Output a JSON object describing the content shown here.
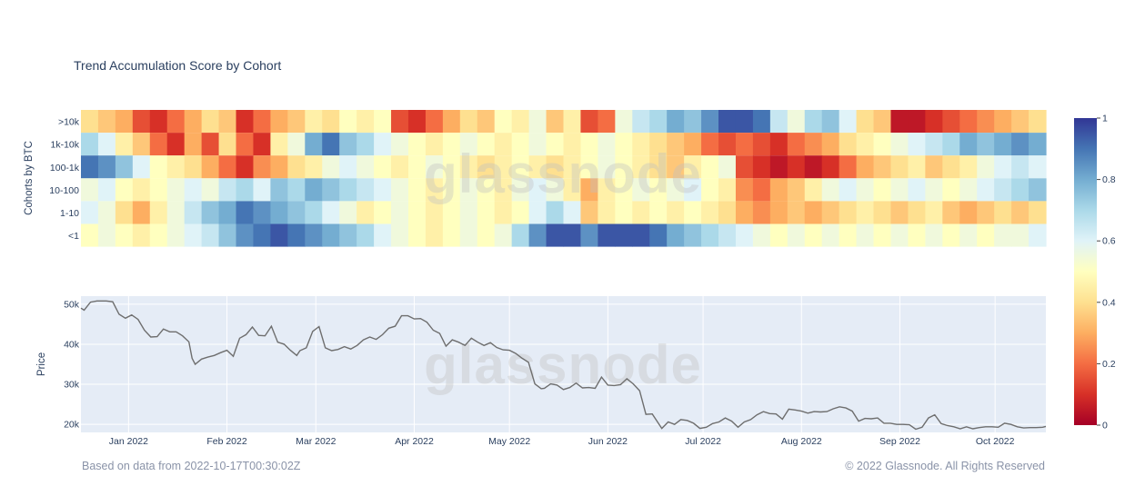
{
  "chart_data": [
    {
      "type": "heatmap",
      "title": "Trend Accumulation Score by Cohort",
      "ylabel": "Cohorts by BTC",
      "rows": [
        ">10k",
        "1k-10k",
        "100-1k",
        "10-100",
        "1-10",
        "<1"
      ],
      "x_start": "2021-12-17",
      "x_end": "2022-10-17",
      "values_by_row": [
        [
          0.4,
          0.35,
          0.3,
          0.15,
          0.1,
          0.2,
          0.3,
          0.4,
          0.35,
          0.1,
          0.2,
          0.3,
          0.35,
          0.45,
          0.4,
          0.5,
          0.45,
          0.5,
          0.15,
          0.1,
          0.2,
          0.3,
          0.4,
          0.35,
          0.5,
          0.45,
          0.55,
          0.35,
          0.45,
          0.15,
          0.2,
          0.55,
          0.65,
          0.7,
          0.8,
          0.75,
          0.85,
          0.95,
          0.95,
          0.9,
          0.65,
          0.55,
          0.7,
          0.75,
          0.6,
          0.4,
          0.35,
          0.05,
          0.05,
          0.1,
          0.15,
          0.2,
          0.25,
          0.3,
          0.35,
          0.4
        ],
        [
          0.7,
          0.6,
          0.45,
          0.35,
          0.2,
          0.1,
          0.3,
          0.15,
          0.4,
          0.2,
          0.1,
          0.45,
          0.55,
          0.8,
          0.9,
          0.75,
          0.7,
          0.6,
          0.55,
          0.5,
          0.45,
          0.5,
          0.55,
          0.5,
          0.45,
          0.5,
          0.55,
          0.5,
          0.45,
          0.5,
          0.55,
          0.5,
          0.45,
          0.4,
          0.35,
          0.3,
          0.2,
          0.15,
          0.2,
          0.15,
          0.1,
          0.2,
          0.25,
          0.3,
          0.4,
          0.45,
          0.5,
          0.55,
          0.6,
          0.65,
          0.7,
          0.8,
          0.75,
          0.8,
          0.85,
          0.8
        ],
        [
          0.9,
          0.85,
          0.75,
          0.6,
          0.5,
          0.45,
          0.4,
          0.3,
          0.2,
          0.1,
          0.25,
          0.3,
          0.4,
          0.45,
          0.55,
          0.6,
          0.55,
          0.5,
          0.45,
          0.5,
          0.55,
          0.5,
          0.45,
          0.4,
          0.45,
          0.5,
          0.45,
          0.4,
          0.45,
          0.5,
          0.55,
          0.5,
          0.45,
          0.4,
          0.35,
          0.45,
          0.5,
          0.55,
          0.15,
          0.1,
          0.05,
          0.1,
          0.05,
          0.1,
          0.2,
          0.3,
          0.35,
          0.4,
          0.45,
          0.35,
          0.4,
          0.45,
          0.55,
          0.6,
          0.65,
          0.6
        ],
        [
          0.55,
          0.6,
          0.5,
          0.45,
          0.5,
          0.55,
          0.6,
          0.55,
          0.65,
          0.7,
          0.6,
          0.75,
          0.7,
          0.8,
          0.75,
          0.7,
          0.65,
          0.6,
          0.55,
          0.5,
          0.45,
          0.5,
          0.55,
          0.5,
          0.45,
          0.55,
          0.6,
          0.55,
          0.45,
          0.3,
          0.45,
          0.5,
          0.55,
          0.5,
          0.55,
          0.6,
          0.5,
          0.45,
          0.25,
          0.2,
          0.3,
          0.35,
          0.45,
          0.55,
          0.6,
          0.55,
          0.5,
          0.55,
          0.6,
          0.55,
          0.5,
          0.55,
          0.6,
          0.65,
          0.7,
          0.75
        ],
        [
          0.6,
          0.55,
          0.4,
          0.3,
          0.45,
          0.55,
          0.65,
          0.75,
          0.8,
          0.9,
          0.85,
          0.8,
          0.75,
          0.7,
          0.6,
          0.55,
          0.45,
          0.5,
          0.55,
          0.5,
          0.45,
          0.5,
          0.55,
          0.5,
          0.45,
          0.5,
          0.6,
          0.7,
          0.6,
          0.35,
          0.45,
          0.5,
          0.45,
          0.5,
          0.45,
          0.5,
          0.45,
          0.4,
          0.3,
          0.25,
          0.3,
          0.35,
          0.3,
          0.35,
          0.4,
          0.45,
          0.4,
          0.35,
          0.4,
          0.45,
          0.35,
          0.3,
          0.35,
          0.4,
          0.35,
          0.4
        ],
        [
          0.5,
          0.55,
          0.5,
          0.45,
          0.5,
          0.55,
          0.6,
          0.65,
          0.75,
          0.85,
          0.9,
          0.95,
          0.9,
          0.85,
          0.8,
          0.75,
          0.7,
          0.6,
          0.55,
          0.5,
          0.45,
          0.5,
          0.55,
          0.5,
          0.55,
          0.7,
          0.85,
          0.95,
          0.95,
          0.85,
          0.95,
          0.95,
          0.95,
          0.9,
          0.8,
          0.75,
          0.7,
          0.65,
          0.6,
          0.55,
          0.5,
          0.55,
          0.5,
          0.55,
          0.5,
          0.55,
          0.5,
          0.55,
          0.5,
          0.55,
          0.5,
          0.55,
          0.5,
          0.55,
          0.55,
          0.6
        ]
      ],
      "colorscale": [
        "#a50026",
        "#d73027",
        "#f46d43",
        "#fdae61",
        "#fee090",
        "#ffffbf",
        "#e0f3f8",
        "#abd9e9",
        "#74add1",
        "#4575b4",
        "#313695"
      ],
      "zlim": [
        0,
        1
      ],
      "colorbar_ticks": [
        "0",
        "0.2",
        "0.4",
        "0.6",
        "0.8",
        "1"
      ]
    },
    {
      "type": "line",
      "ylabel": "Price",
      "ylim": [
        18000,
        52000
      ],
      "yticks": [
        {
          "v": 50000,
          "label": "50k"
        },
        {
          "v": 40000,
          "label": "40k"
        },
        {
          "v": 30000,
          "label": "30k"
        },
        {
          "v": 20000,
          "label": "20k"
        }
      ],
      "x_start": "2021-12-17",
      "x_end": "2022-10-17",
      "xticks": [
        {
          "date": "2022-01-01",
          "label": "Jan 2022"
        },
        {
          "date": "2022-02-01",
          "label": "Feb 2022"
        },
        {
          "date": "2022-03-01",
          "label": "Mar 2022"
        },
        {
          "date": "2022-04-01",
          "label": "Apr 2022"
        },
        {
          "date": "2022-05-01",
          "label": "May 2022"
        },
        {
          "date": "2022-06-01",
          "label": "Jun 2022"
        },
        {
          "date": "2022-07-01",
          "label": "Jul 2022"
        },
        {
          "date": "2022-08-01",
          "label": "Aug 2022"
        },
        {
          "date": "2022-09-01",
          "label": "Sep 2022"
        },
        {
          "date": "2022-10-01",
          "label": "Oct 2022"
        }
      ],
      "series": [
        {
          "line_color": "#6e6e6e",
          "points": [
            [
              "2021-12-17",
              49000
            ],
            [
              "2021-12-18",
              48500
            ],
            [
              "2021-12-20",
              50500
            ],
            [
              "2021-12-22",
              50800
            ],
            [
              "2021-12-25",
              50800
            ],
            [
              "2021-12-27",
              50600
            ],
            [
              "2021-12-29",
              47500
            ],
            [
              "2021-12-31",
              46500
            ],
            [
              "2022-01-02",
              47300
            ],
            [
              "2022-01-04",
              46200
            ],
            [
              "2022-01-06",
              43500
            ],
            [
              "2022-01-08",
              41800
            ],
            [
              "2022-01-10",
              41900
            ],
            [
              "2022-01-12",
              43800
            ],
            [
              "2022-01-14",
              43100
            ],
            [
              "2022-01-16",
              43100
            ],
            [
              "2022-01-18",
              42100
            ],
            [
              "2022-01-20",
              40600
            ],
            [
              "2022-01-21",
              36500
            ],
            [
              "2022-01-22",
              35000
            ],
            [
              "2022-01-24",
              36300
            ],
            [
              "2022-01-26",
              36800
            ],
            [
              "2022-01-28",
              37200
            ],
            [
              "2022-01-30",
              37900
            ],
            [
              "2022-02-01",
              38500
            ],
            [
              "2022-02-03",
              37000
            ],
            [
              "2022-02-05",
              41500
            ],
            [
              "2022-02-07",
              42400
            ],
            [
              "2022-02-09",
              44300
            ],
            [
              "2022-02-11",
              42200
            ],
            [
              "2022-02-13",
              42100
            ],
            [
              "2022-02-15",
              44500
            ],
            [
              "2022-02-17",
              40500
            ],
            [
              "2022-02-19",
              40000
            ],
            [
              "2022-02-21",
              38500
            ],
            [
              "2022-02-23",
              37200
            ],
            [
              "2022-02-24",
              38400
            ],
            [
              "2022-02-26",
              39100
            ],
            [
              "2022-02-28",
              43200
            ],
            [
              "2022-03-02",
              44400
            ],
            [
              "2022-03-04",
              39100
            ],
            [
              "2022-03-06",
              38400
            ],
            [
              "2022-03-08",
              38700
            ],
            [
              "2022-03-10",
              39400
            ],
            [
              "2022-03-12",
              38800
            ],
            [
              "2022-03-14",
              39700
            ],
            [
              "2022-03-16",
              41100
            ],
            [
              "2022-03-18",
              41800
            ],
            [
              "2022-03-20",
              41200
            ],
            [
              "2022-03-22",
              42400
            ],
            [
              "2022-03-24",
              44000
            ],
            [
              "2022-03-26",
              44500
            ],
            [
              "2022-03-28",
              47100
            ],
            [
              "2022-03-30",
              47100
            ],
            [
              "2022-04-01",
              46300
            ],
            [
              "2022-04-03",
              46400
            ],
            [
              "2022-04-05",
              45500
            ],
            [
              "2022-04-07",
              43500
            ],
            [
              "2022-04-09",
              42700
            ],
            [
              "2022-04-11",
              39500
            ],
            [
              "2022-04-13",
              41100
            ],
            [
              "2022-04-15",
              40500
            ],
            [
              "2022-04-17",
              39700
            ],
            [
              "2022-04-19",
              41500
            ],
            [
              "2022-04-21",
              40500
            ],
            [
              "2022-04-23",
              39700
            ],
            [
              "2022-04-25",
              40400
            ],
            [
              "2022-04-27",
              39200
            ],
            [
              "2022-04-29",
              38600
            ],
            [
              "2022-05-01",
              38500
            ],
            [
              "2022-05-03",
              37700
            ],
            [
              "2022-05-05",
              36500
            ],
            [
              "2022-05-07",
              35500
            ],
            [
              "2022-05-09",
              30100
            ],
            [
              "2022-05-11",
              28900
            ],
            [
              "2022-05-12",
              29000
            ],
            [
              "2022-05-14",
              30100
            ],
            [
              "2022-05-16",
              29800
            ],
            [
              "2022-05-18",
              28700
            ],
            [
              "2022-05-20",
              29200
            ],
            [
              "2022-05-22",
              30300
            ],
            [
              "2022-05-24",
              29100
            ],
            [
              "2022-05-26",
              29200
            ],
            [
              "2022-05-28",
              29000
            ],
            [
              "2022-05-30",
              31800
            ],
            [
              "2022-06-01",
              29800
            ],
            [
              "2022-06-03",
              29700
            ],
            [
              "2022-06-05",
              29900
            ],
            [
              "2022-06-07",
              31400
            ],
            [
              "2022-06-09",
              30100
            ],
            [
              "2022-06-11",
              28400
            ],
            [
              "2022-06-13",
              22500
            ],
            [
              "2022-06-15",
              22600
            ],
            [
              "2022-06-18",
              19000
            ],
            [
              "2022-06-20",
              20600
            ],
            [
              "2022-06-22",
              20000
            ],
            [
              "2022-06-24",
              21200
            ],
            [
              "2022-06-26",
              21000
            ],
            [
              "2022-06-28",
              20300
            ],
            [
              "2022-06-30",
              19000
            ],
            [
              "2022-07-02",
              19300
            ],
            [
              "2022-07-04",
              20200
            ],
            [
              "2022-07-06",
              20600
            ],
            [
              "2022-07-08",
              21600
            ],
            [
              "2022-07-10",
              20800
            ],
            [
              "2022-07-12",
              19300
            ],
            [
              "2022-07-14",
              20600
            ],
            [
              "2022-07-16",
              21200
            ],
            [
              "2022-07-18",
              22400
            ],
            [
              "2022-07-20",
              23200
            ],
            [
              "2022-07-22",
              22700
            ],
            [
              "2022-07-24",
              22600
            ],
            [
              "2022-07-26",
              21300
            ],
            [
              "2022-07-28",
              23800
            ],
            [
              "2022-07-30",
              23600
            ],
            [
              "2022-08-01",
              23300
            ],
            [
              "2022-08-03",
              22800
            ],
            [
              "2022-08-05",
              23200
            ],
            [
              "2022-08-07",
              23100
            ],
            [
              "2022-08-09",
              23200
            ],
            [
              "2022-08-11",
              23900
            ],
            [
              "2022-08-13",
              24400
            ],
            [
              "2022-08-15",
              24100
            ],
            [
              "2022-08-17",
              23300
            ],
            [
              "2022-08-19",
              20800
            ],
            [
              "2022-08-21",
              21500
            ],
            [
              "2022-08-23",
              21400
            ],
            [
              "2022-08-25",
              21600
            ],
            [
              "2022-08-27",
              20300
            ],
            [
              "2022-08-29",
              20300
            ],
            [
              "2022-08-31",
              20000
            ],
            [
              "2022-09-02",
              20000
            ],
            [
              "2022-09-04",
              19900
            ],
            [
              "2022-09-06",
              18800
            ],
            [
              "2022-09-08",
              19300
            ],
            [
              "2022-09-10",
              21600
            ],
            [
              "2022-09-12",
              22400
            ],
            [
              "2022-09-14",
              20200
            ],
            [
              "2022-09-16",
              19700
            ],
            [
              "2022-09-18",
              19400
            ],
            [
              "2022-09-20",
              18900
            ],
            [
              "2022-09-22",
              19400
            ],
            [
              "2022-09-24",
              18900
            ],
            [
              "2022-09-26",
              19200
            ],
            [
              "2022-09-28",
              19400
            ],
            [
              "2022-09-30",
              19400
            ],
            [
              "2022-10-02",
              19300
            ],
            [
              "2022-10-04",
              20300
            ],
            [
              "2022-10-06",
              20000
            ],
            [
              "2022-10-08",
              19400
            ],
            [
              "2022-10-10",
              19100
            ],
            [
              "2022-10-12",
              19200
            ],
            [
              "2022-10-14",
              19200
            ],
            [
              "2022-10-16",
              19300
            ],
            [
              "2022-10-17",
              19500
            ]
          ]
        }
      ]
    }
  ],
  "watermark": "glassnode",
  "footer": {
    "left": "Based on data from 2022-10-17T00:30:02Z",
    "right": "© 2022 Glassnode. All Rights Reserved"
  }
}
